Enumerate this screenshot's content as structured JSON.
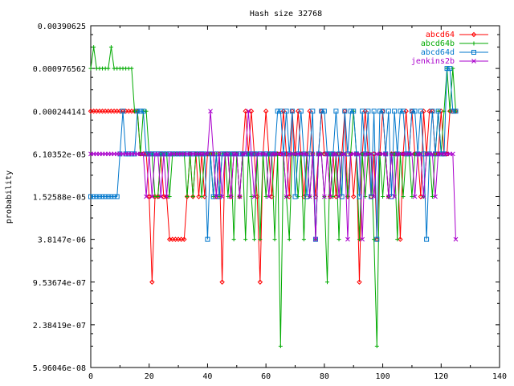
{
  "chart_data": {
    "type": "line",
    "title": "Hash size 32768",
    "xlabel": "",
    "ylabel": "probability",
    "xlim": [
      0,
      140
    ],
    "x_ticks": [
      "0",
      "20",
      "40",
      "60",
      "80",
      "100",
      "120",
      "140"
    ],
    "y_scale": "log4",
    "ylim_exp": [
      -24,
      -8
    ],
    "y_ticks": [
      {
        "label": "0.00390625",
        "exp": -8
      },
      {
        "label": "0.000976562",
        "exp": -10
      },
      {
        "label": "0.000244141",
        "exp": -12
      },
      {
        "label": "6.10352e-05",
        "exp": -14
      },
      {
        "label": "1.52588e-05",
        "exp": -16
      },
      {
        "label": "3.8147e-06",
        "exp": -18
      },
      {
        "label": "9.53674e-07",
        "exp": -20
      },
      {
        "label": "2.38419e-07",
        "exp": -22
      },
      {
        "label": "5.96046e-08",
        "exp": -24
      }
    ],
    "legend_position": "top-right",
    "grid": false,
    "series": [
      {
        "name": "abcd64",
        "color": "#ff0000",
        "marker": "diamond",
        "exp": [
          -12,
          -12,
          -12,
          -12,
          -12,
          -12,
          -12,
          -12,
          -12,
          -12,
          -12,
          -12,
          -12,
          -12,
          -12,
          -12,
          -12,
          -14,
          -14,
          -14,
          -16,
          -20,
          -16,
          -16,
          -14,
          -16,
          -16,
          -18,
          -18,
          -18,
          -18,
          -18,
          -18,
          -16,
          -14,
          -16,
          -14,
          -16,
          -14,
          -16,
          -14,
          -14,
          -14,
          -16,
          -14,
          -20,
          -14,
          -14,
          -16,
          -14,
          -14,
          -16,
          -14,
          -12,
          -14,
          -12,
          -14,
          -16,
          -20,
          -14,
          -12,
          -14,
          -16,
          -14,
          -14,
          -14,
          -12,
          -14,
          -16,
          -12,
          -14,
          -12,
          -14,
          -16,
          -14,
          -12,
          -14,
          -16,
          -14,
          -12,
          -14,
          -14,
          -16,
          -14,
          -16,
          -14,
          -14,
          -12,
          -16,
          -14,
          -16,
          -14,
          -20,
          -14,
          -12,
          -14,
          -16,
          -14,
          -18,
          -14,
          -12,
          -14,
          -16,
          -14,
          -14,
          -14,
          -18,
          -14,
          -12,
          -14,
          -12,
          -14,
          -14,
          -16,
          -12,
          -14,
          -12,
          -12,
          -14,
          -14,
          -12,
          -14,
          -14,
          -12,
          -12,
          -12
        ]
      },
      {
        "name": "abcd64b",
        "color": "#00aa00",
        "marker": "plus",
        "exp": [
          -10,
          -9,
          -10,
          -10,
          -10,
          -10,
          -10,
          -9,
          -10,
          -10,
          -10,
          -10,
          -10,
          -10,
          -10,
          -12,
          -12,
          -14,
          -12,
          -12,
          -14,
          -14,
          -16,
          -16,
          -14,
          -14,
          -14,
          -16,
          -14,
          -14,
          -14,
          -14,
          -14,
          -16,
          -14,
          -16,
          -14,
          -14,
          -16,
          -14,
          -14,
          -14,
          -16,
          -14,
          -16,
          -14,
          -14,
          -16,
          -14,
          -18,
          -14,
          -16,
          -14,
          -18,
          -14,
          -16,
          -18,
          -14,
          -18,
          -14,
          -16,
          -14,
          -14,
          -18,
          -14,
          -23,
          -14,
          -16,
          -18,
          -14,
          -14,
          -16,
          -14,
          -18,
          -14,
          -16,
          -14,
          -18,
          -14,
          -14,
          -16,
          -20,
          -14,
          -16,
          -14,
          -18,
          -14,
          -14,
          -16,
          -14,
          -12,
          -14,
          -18,
          -14,
          -16,
          -14,
          -14,
          -18,
          -23,
          -14,
          -16,
          -14,
          -16,
          -14,
          -14,
          -18,
          -14,
          -16,
          -14,
          -14,
          -16,
          -14,
          -14,
          -14,
          -16,
          -14,
          -14,
          -16,
          -14,
          -12,
          -14,
          -12,
          -10,
          -12,
          -10,
          -12
        ]
      },
      {
        "name": "abcd64d",
        "color": "#0077cc",
        "marker": "square",
        "exp": [
          -16,
          -16,
          -16,
          -16,
          -16,
          -16,
          -16,
          -16,
          -16,
          -16,
          -14,
          -12,
          -14,
          -14,
          -14,
          -14,
          -12,
          -12,
          -12,
          -14,
          -14,
          -14,
          -14,
          -14,
          -14,
          -14,
          -14,
          -14,
          -14,
          -14,
          -14,
          -14,
          -14,
          -14,
          -14,
          -14,
          -14,
          -14,
          -14,
          -14,
          -18,
          -14,
          -16,
          -14,
          -16,
          -14,
          -14,
          -14,
          -14,
          -14,
          -14,
          -14,
          -14,
          -14,
          -14,
          -14,
          -14,
          -14,
          -14,
          -14,
          -14,
          -14,
          -14,
          -14,
          -12,
          -12,
          -14,
          -12,
          -14,
          -12,
          -16,
          -14,
          -12,
          -14,
          -16,
          -14,
          -12,
          -18,
          -14,
          -12,
          -12,
          -14,
          -14,
          -14,
          -12,
          -14,
          -16,
          -12,
          -14,
          -12,
          -12,
          -14,
          -16,
          -12,
          -14,
          -12,
          -16,
          -12,
          -18,
          -12,
          -12,
          -14,
          -12,
          -16,
          -12,
          -14,
          -12,
          -12,
          -14,
          -14,
          -12,
          -12,
          -14,
          -12,
          -14,
          -18,
          -14,
          -12,
          -14,
          -12,
          -14,
          -14,
          -10,
          -10,
          -12,
          -12
        ]
      },
      {
        "name": "jenkins2b",
        "color": "#aa00cc",
        "marker": "cross",
        "exp": [
          -14,
          -14,
          -14,
          -14,
          -14,
          -14,
          -14,
          -14,
          -14,
          -14,
          -14,
          -14,
          -14,
          -14,
          -14,
          -14,
          -14,
          -14,
          -14,
          -16,
          -14,
          -16,
          -14,
          -14,
          -16,
          -14,
          -16,
          -14,
          -14,
          -14,
          -14,
          -14,
          -14,
          -14,
          -14,
          -14,
          -14,
          -14,
          -14,
          -14,
          -14,
          -12,
          -14,
          -16,
          -14,
          -16,
          -14,
          -14,
          -16,
          -14,
          -14,
          -16,
          -14,
          -14,
          -12,
          -14,
          -16,
          -14,
          -14,
          -14,
          -14,
          -16,
          -14,
          -14,
          -14,
          -14,
          -14,
          -16,
          -14,
          -14,
          -14,
          -14,
          -14,
          -14,
          -14,
          -16,
          -14,
          -18,
          -14,
          -14,
          -16,
          -14,
          -16,
          -14,
          -14,
          -16,
          -14,
          -14,
          -18,
          -14,
          -14,
          -14,
          -14,
          -18,
          -14,
          -14,
          -14,
          -16,
          -14,
          -14,
          -14,
          -14,
          -16,
          -14,
          -16,
          -14,
          -14,
          -14,
          -14,
          -14,
          -14,
          -16,
          -14,
          -14,
          -16,
          -14,
          -14,
          -14,
          -16,
          -14,
          -14,
          -14,
          -14,
          -14,
          -14,
          -18
        ]
      }
    ]
  }
}
